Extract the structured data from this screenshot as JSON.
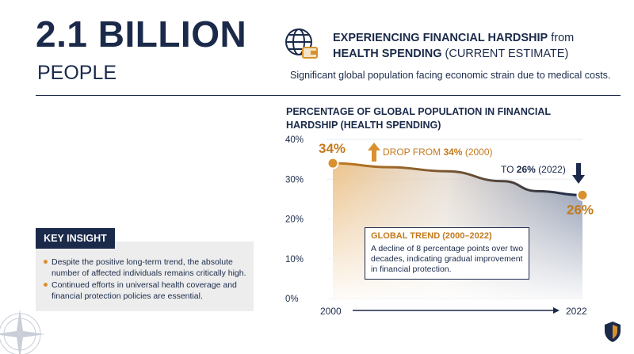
{
  "hero": {
    "number": "2.1 BILLION",
    "unit": "PEOPLE"
  },
  "headline": {
    "bold_1": "EXPERIENCING FINANCIAL HARDSHIP",
    "normal_1": " from",
    "bold_2": "HEALTH SPENDING",
    "normal_2": " (CURRENT ESTIMATE)"
  },
  "subline": "Significant global population facing economic strain due to medical costs.",
  "insight": {
    "tab_label": "KEY INSIGHT",
    "bullets": [
      "Despite the positive long-term trend, the absolute number of affected individuals remains critically high.",
      "Continued efforts in universal health coverage and financial protection policies are essential."
    ]
  },
  "annotations": {
    "drop_prefix": "DROP FROM ",
    "drop_value": "34%",
    "drop_suffix": " (2000)",
    "to_prefix": "TO ",
    "to_value": "26%",
    "to_suffix": " (2022)",
    "trend_title": "GLOBAL TREND (2000–2022)",
    "trend_text": "A decline of 8 percentage points over two decades, indicating gradual improvement in financial protection."
  },
  "icons": [
    "globe-wallet-icon",
    "arrow-up-icon",
    "arrow-down-icon",
    "compass-icon",
    "shield-logo-icon"
  ],
  "colors": {
    "navy": "#1b2a4a",
    "orange": "#d9912e",
    "orange_dark": "#c47a1c"
  },
  "chart_data": {
    "type": "area",
    "title": "PERCENTAGE OF GLOBAL POPULATION IN FINANCIAL HARDSHIP (HEALTH SPENDING)",
    "x": [
      2000,
      2005,
      2010,
      2015,
      2018,
      2022
    ],
    "y": [
      34,
      33,
      32,
      29.5,
      27,
      26
    ],
    "x_tick_labels": [
      "2000",
      "2022"
    ],
    "y_tick_labels": [
      "0%",
      "10%",
      "20%",
      "30%",
      "40%"
    ],
    "ylim": [
      0,
      40
    ],
    "xlim": [
      2000,
      2022
    ],
    "endpoint_labels": {
      "start": "34%",
      "end": "26%"
    },
    "grid": true,
    "legend": "none"
  }
}
